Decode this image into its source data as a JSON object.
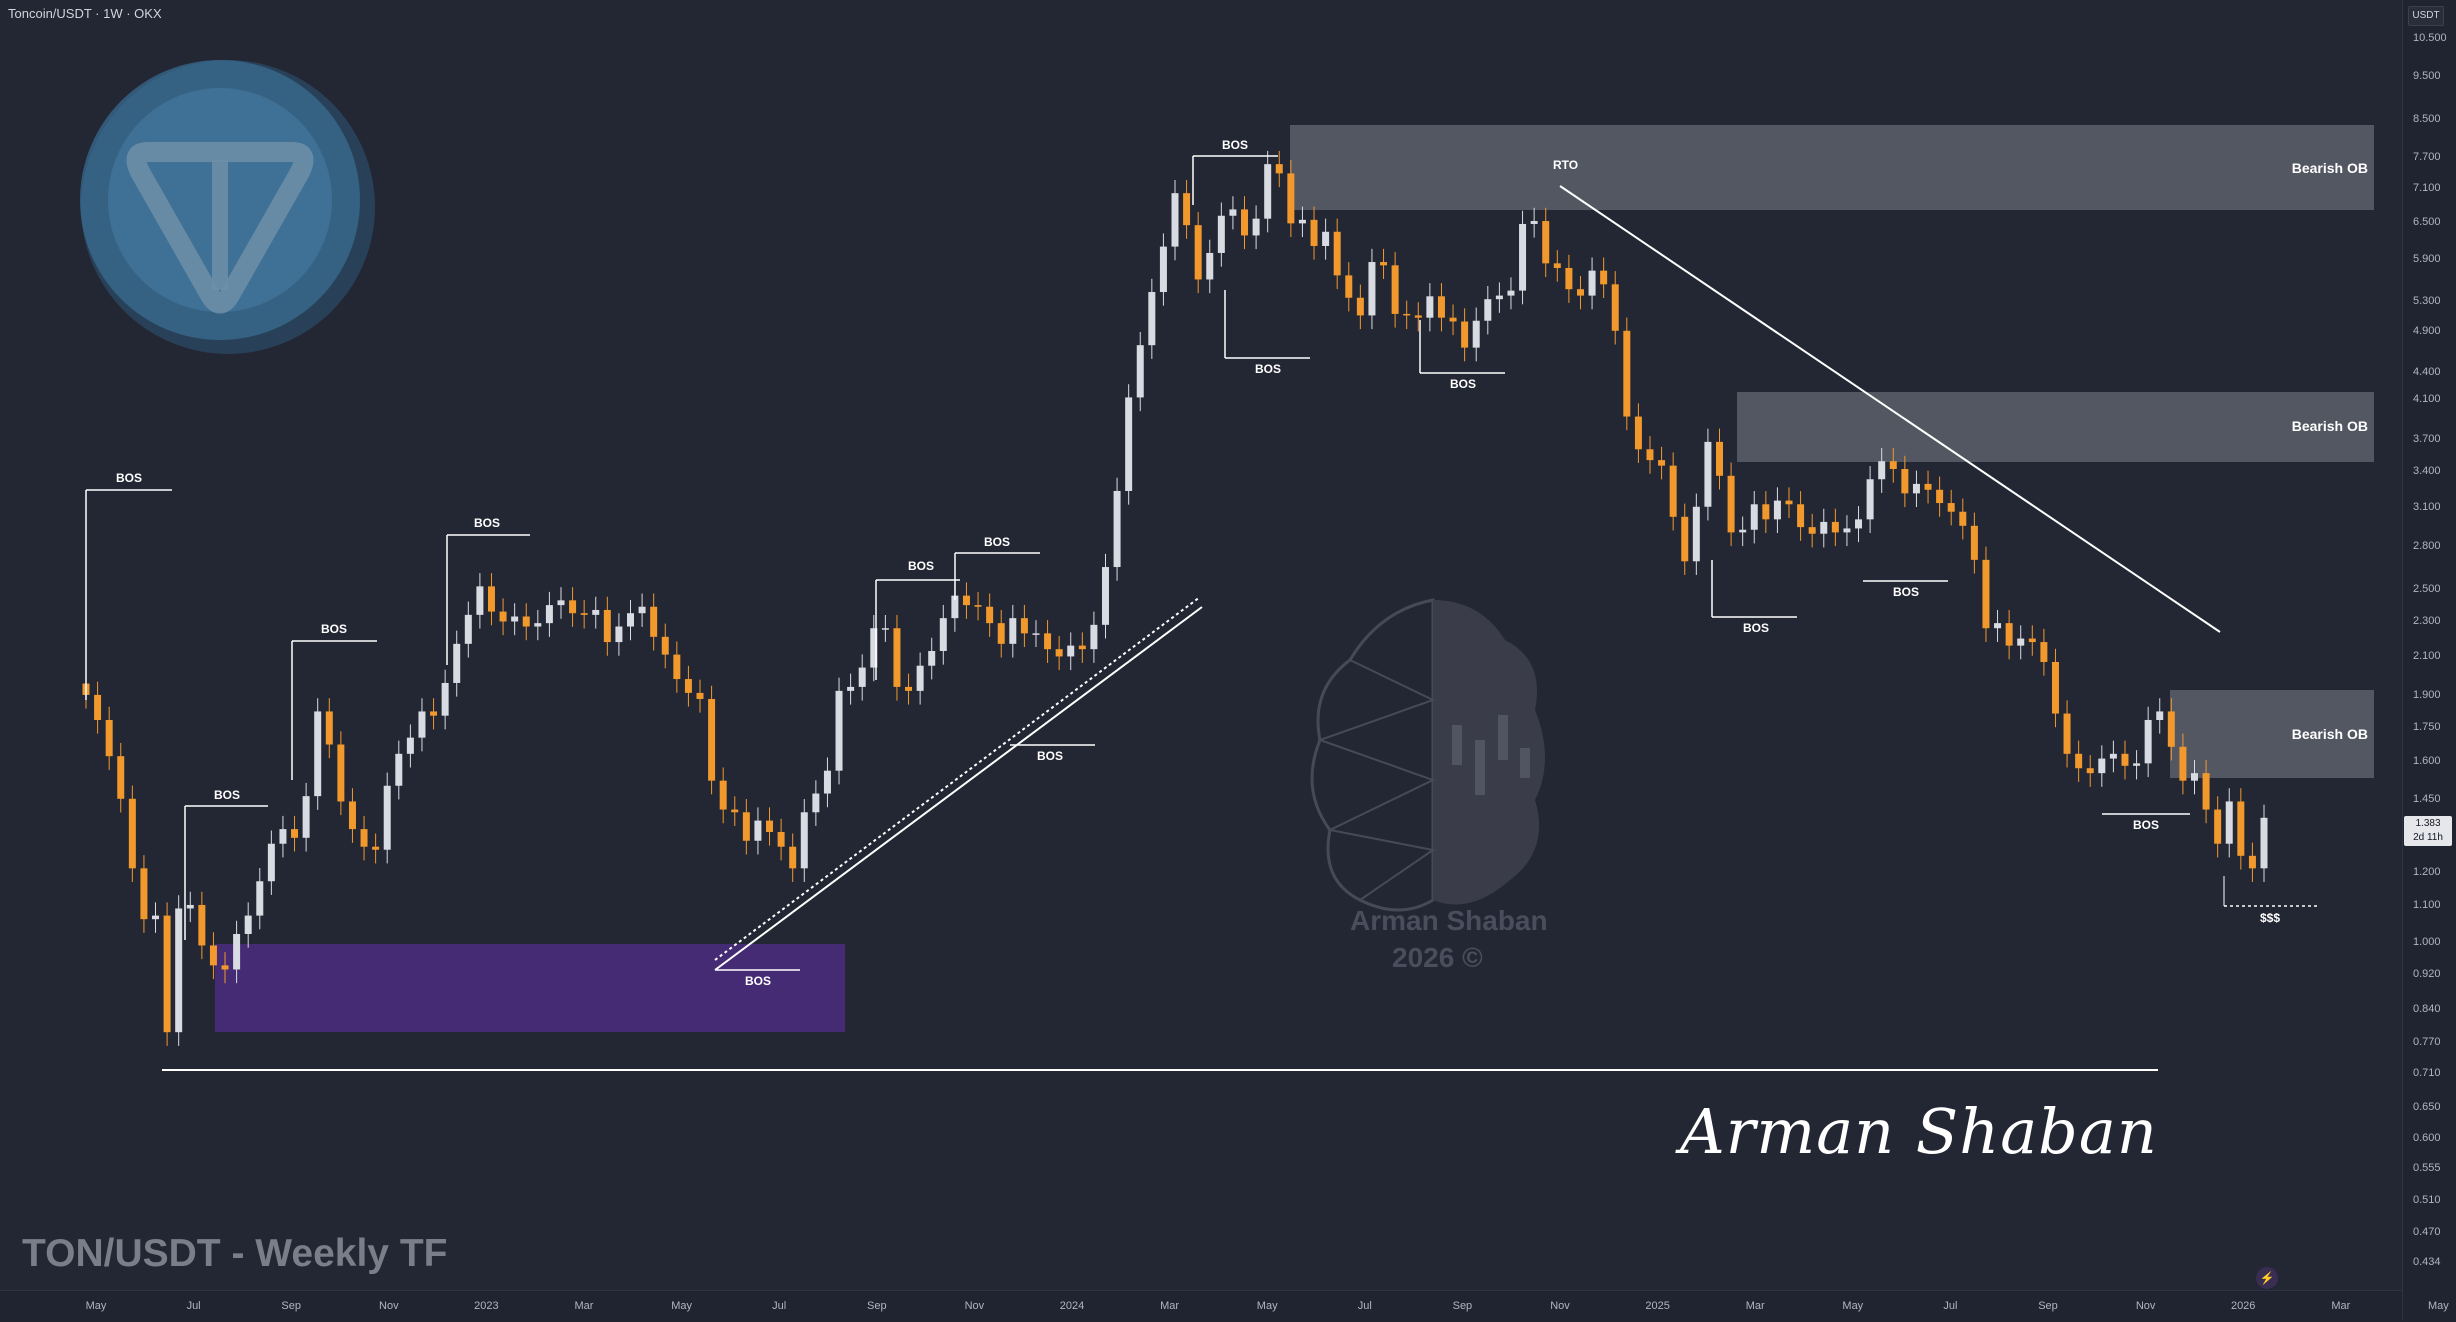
{
  "header": {
    "symbol_title": "Toncoin/USDT · 1W · OKX",
    "currency_badge": "USDT"
  },
  "price_axis": {
    "ticks": [
      "10.500",
      "9.500",
      "8.500",
      "7.700",
      "7.100",
      "6.500",
      "5.900",
      "5.300",
      "4.900",
      "4.400",
      "4.100",
      "3.700",
      "3.400",
      "3.100",
      "2.800",
      "2.500",
      "2.300",
      "2.100",
      "1.900",
      "1.750",
      "1.600",
      "1.450",
      "1.200",
      "1.100",
      "1.000",
      "0.920",
      "0.840",
      "0.770",
      "0.710",
      "0.650",
      "0.600",
      "0.555",
      "0.510",
      "0.470",
      "0.434"
    ],
    "current_price": "1.383",
    "countdown": "2d 11h"
  },
  "time_axis": {
    "ticks": [
      "May",
      "Jul",
      "Sep",
      "Nov",
      "2023",
      "Mar",
      "May",
      "Jul",
      "Sep",
      "Nov",
      "2024",
      "Mar",
      "May",
      "Jul",
      "Sep",
      "Nov",
      "2025",
      "Mar",
      "May",
      "Jul",
      "Sep",
      "Nov",
      "2026",
      "Mar",
      "May"
    ]
  },
  "annotations": {
    "bos": "BOS",
    "rto": "RTO",
    "bearish_ob": "Bearish OB",
    "liquidity": "$$$"
  },
  "caption": "TON/USDT - Weekly TF",
  "signature": "Arman Shaban",
  "watermark": {
    "name": "Arman Shaban",
    "year": "2026 ©"
  },
  "colors": {
    "background": "#232633",
    "bull_candle": "#d9dbe2",
    "bear_candle": "#f2992e",
    "zone": "#7c7f88",
    "demand_zone": "#4b2d7f",
    "line": "#ffffff"
  },
  "chart_data": {
    "type": "candlestick",
    "title": "Toncoin/USDT · 1W · OKX",
    "xlabel": "",
    "ylabel": "",
    "y_scale": "log",
    "ylim": [
      0.42,
      11.0
    ],
    "x_ticks": [
      "May",
      "Jul",
      "Sep",
      "Nov",
      "2023",
      "Mar",
      "May",
      "Jul",
      "Sep",
      "Nov",
      "2024",
      "Mar",
      "May",
      "Jul",
      "Sep",
      "Nov",
      "2025",
      "Mar",
      "May",
      "Jul",
      "Sep",
      "Nov",
      "2026",
      "Mar",
      "May"
    ],
    "last_price": 1.383,
    "closes": [
      1.9,
      1.78,
      1.62,
      1.45,
      1.21,
      1.06,
      1.07,
      0.79,
      1.09,
      1.1,
      0.99,
      0.94,
      0.93,
      1.02,
      1.07,
      1.17,
      1.29,
      1.34,
      1.31,
      1.46,
      1.82,
      1.67,
      1.44,
      1.34,
      1.28,
      1.27,
      1.5,
      1.63,
      1.7,
      1.82,
      1.8,
      1.96,
      2.17,
      2.34,
      2.52,
      2.36,
      2.3,
      2.33,
      2.27,
      2.29,
      2.4,
      2.43,
      2.35,
      2.34,
      2.37,
      2.18,
      2.27,
      2.35,
      2.39,
      2.21,
      2.11,
      1.98,
      1.91,
      1.88,
      1.52,
      1.41,
      1.4,
      1.3,
      1.37,
      1.33,
      1.28,
      1.21,
      1.4,
      1.47,
      1.56,
      1.92,
      1.94,
      2.04,
      2.26,
      2.26,
      1.94,
      1.92,
      2.05,
      2.13,
      2.32,
      2.46,
      2.4,
      2.39,
      2.29,
      2.17,
      2.32,
      2.23,
      2.23,
      2.14,
      2.1,
      2.16,
      2.14,
      2.28,
      2.65,
      3.23,
      4.12,
      4.72,
      5.42,
      6.1,
      7.01,
      6.45,
      5.6,
      6.0,
      6.61,
      6.72,
      6.28,
      6.56,
      7.56,
      7.38,
      6.48,
      6.54,
      6.11,
      6.34,
      5.66,
      5.34,
      5.1,
      5.86,
      5.81,
      5.12,
      5.1,
      5.07,
      5.36,
      5.07,
      5.02,
      4.69,
      5.03,
      5.32,
      5.37,
      5.44,
      6.47,
      6.52,
      5.84,
      5.77,
      5.46,
      5.37,
      5.73,
      5.53,
      4.9,
      3.92,
      3.6,
      3.5,
      3.45,
      3.02,
      2.69,
      3.1,
      3.67,
      3.36,
      2.9,
      2.92,
      3.12,
      3.0,
      3.15,
      3.12,
      2.94,
      2.89,
      2.98,
      2.9,
      2.93,
      3.0,
      3.33,
      3.49,
      3.42,
      3.21,
      3.29,
      3.24,
      3.13,
      3.06,
      2.95,
      2.7,
      2.26,
      2.29,
      2.16,
      2.2,
      2.18,
      2.07,
      1.81,
      1.63,
      1.57,
      1.55,
      1.61,
      1.63,
      1.58,
      1.59,
      1.78,
      1.82,
      1.66,
      1.52,
      1.55,
      1.41,
      1.29,
      1.44,
      1.25,
      1.21,
      1.38
    ]
  }
}
